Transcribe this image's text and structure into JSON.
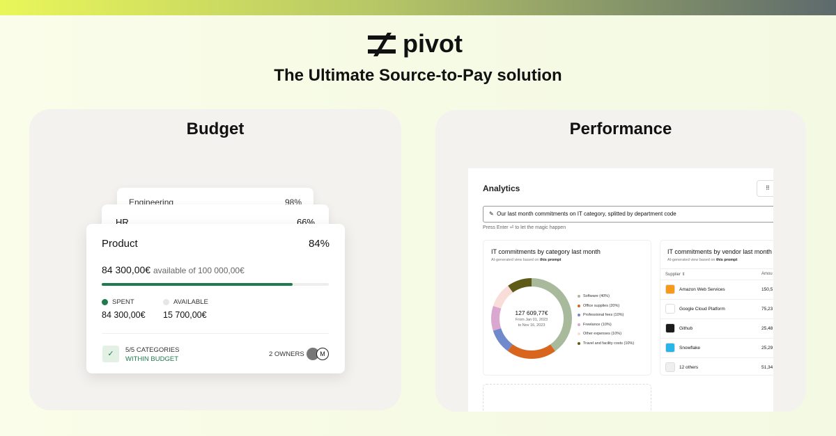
{
  "header": {
    "logo": "pivot",
    "tagline": "The Ultimate Source-to-Pay solution"
  },
  "budget": {
    "title": "Budget",
    "cards": [
      {
        "name": "Engineering",
        "percent": "98%"
      },
      {
        "name": "HR",
        "percent": "66%"
      }
    ],
    "product": {
      "name": "Product",
      "percent": {
        "value": 84,
        "label": "84%"
      },
      "spent_amount": "84 300,00€",
      "available_text": "available of 100 000,00€",
      "legend": [
        {
          "label": "SPENT",
          "amount": "84 300,00€",
          "color": "#1f7a4d"
        },
        {
          "label": "AVAILABLE",
          "amount": "15 700,00€",
          "color": "#e6e6e2"
        }
      ],
      "categories": "5/5 CATEGORIES",
      "status": "WITHIN BUDGET",
      "owners": "2 OWNERS",
      "avatar": "M"
    }
  },
  "performance": {
    "title": "Performance",
    "analytics": {
      "title": "Analytics",
      "prompt": "Our last month commitments on IT category, splitted by department code",
      "hint": "Press Enter ⏎ to let the magic happen",
      "category_card": {
        "title": "IT commitments by category last month",
        "sub_prefix": "AI-generated view based on",
        "sub_link": "this prompt",
        "total": "127 609,77€",
        "from": "From Jan 01, 2023",
        "to": "to Nov 16, 2023",
        "segments": [
          {
            "label": "Software (40%)",
            "value": 40,
            "color": "#a8ba9b"
          },
          {
            "label": "Office supplies (20%)",
            "value": 20,
            "color": "#d9661f"
          },
          {
            "label": "Professional fees (10%)",
            "value": 10,
            "color": "#7089cc"
          },
          {
            "label": "Freelance (10%)",
            "value": 10,
            "color": "#d9a7d0"
          },
          {
            "label": "Other expenses (10%)",
            "value": 10,
            "color": "#f8ddd8"
          },
          {
            "label": "Travel and facility costs (10%)",
            "value": 10,
            "color": "#5e5a17"
          }
        ]
      },
      "vendor_card": {
        "title": "IT commitments by vendor last month",
        "sub_prefix": "AI-generated view based on",
        "sub_link": "this prompt",
        "columns": [
          "Supplier",
          "Amou"
        ],
        "rows": [
          {
            "name": "Amazon Web Services",
            "amount": "150,5",
            "color": "#f59a1b"
          },
          {
            "name": "Google Cloud Platform",
            "amount": "75,23",
            "color": "#ffffff"
          },
          {
            "name": "Github",
            "amount": "25,48",
            "color": "#1b1b1b"
          },
          {
            "name": "Snowflake",
            "amount": "25,29",
            "color": "#29b5e8"
          },
          {
            "name": "12 others",
            "amount": "51,34",
            "color": "#efefef"
          }
        ]
      }
    }
  }
}
